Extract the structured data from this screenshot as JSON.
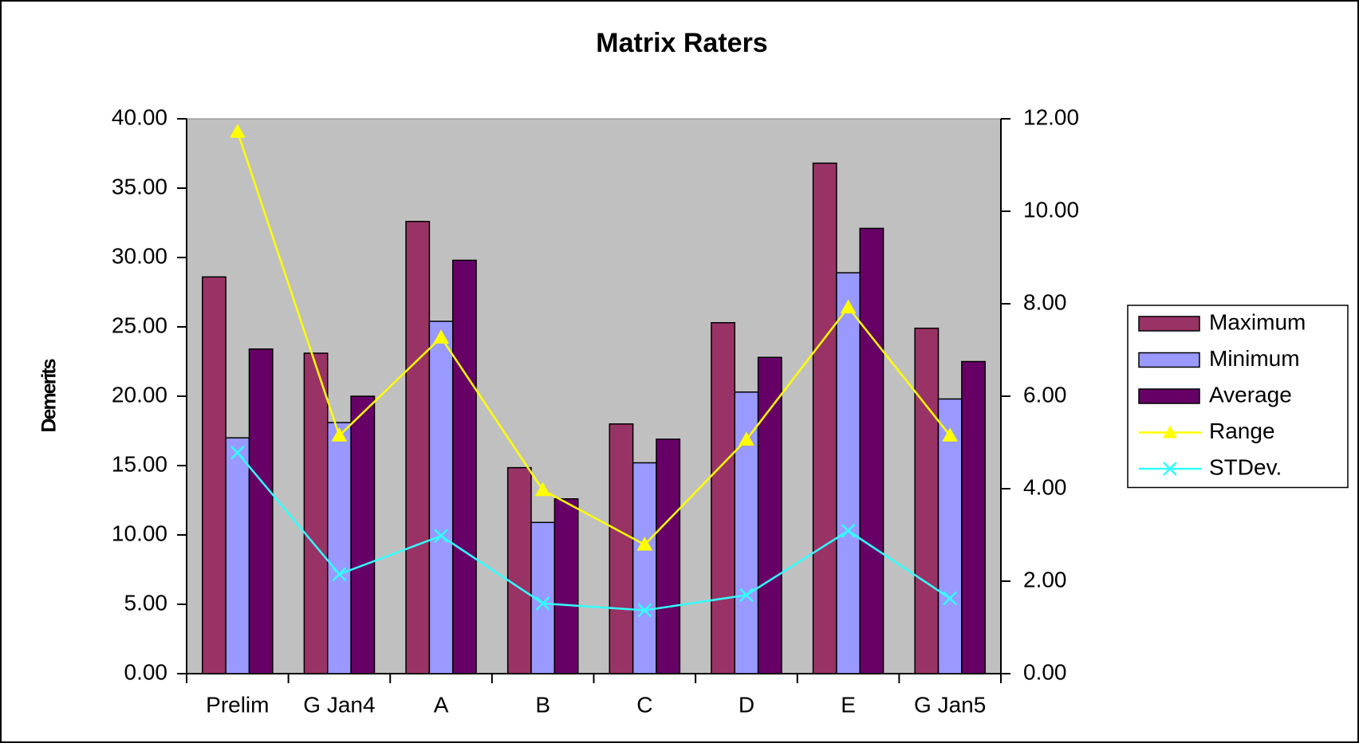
{
  "chart_data": {
    "type": "bar",
    "title": "Matrix Raters",
    "y_label": "Demerits",
    "categories": [
      "Prelim",
      "G Jan4",
      "A",
      "B",
      "C",
      "D",
      "E",
      "G Jan5"
    ],
    "series": [
      {
        "name": "Maximum",
        "color": "#993366",
        "type": "bar",
        "axis": "y",
        "values": [
          28.6,
          23.1,
          32.6,
          14.85,
          18.0,
          25.3,
          36.8,
          24.9
        ]
      },
      {
        "name": "Minimum",
        "color": "#9999ff",
        "type": "bar",
        "axis": "y",
        "values": [
          17.0,
          18.1,
          25.4,
          10.9,
          15.2,
          20.3,
          28.9,
          19.8
        ]
      },
      {
        "name": "Average",
        "color": "#660066",
        "type": "bar",
        "axis": "y",
        "values": [
          23.4,
          20.0,
          29.8,
          12.6,
          16.9,
          22.8,
          32.1,
          22.5
        ]
      },
      {
        "name": "Range",
        "color": "#ffff00",
        "type": "line",
        "marker": "triangle",
        "axis": "y2",
        "values": [
          11.72,
          5.15,
          7.27,
          3.97,
          2.79,
          5.06,
          7.92,
          5.15
        ]
      },
      {
        "name": "STDev.",
        "color": "#33ffff",
        "type": "line",
        "marker": "x",
        "axis": "y2",
        "values": [
          4.78,
          2.15,
          2.98,
          1.52,
          1.37,
          1.7,
          3.09,
          1.63
        ]
      }
    ],
    "ylim": [
      0,
      40
    ],
    "yticks": [
      {
        "value": 0,
        "label": "0.00"
      },
      {
        "value": 5,
        "label": "5.00"
      },
      {
        "value": 10,
        "label": "10.00"
      },
      {
        "value": 15,
        "label": "15.00"
      },
      {
        "value": 20,
        "label": "20.00"
      },
      {
        "value": 25,
        "label": "25.00"
      },
      {
        "value": 30,
        "label": "30.00"
      },
      {
        "value": 35,
        "label": "35.00"
      },
      {
        "value": 40,
        "label": "40.00"
      }
    ],
    "y2lim": [
      0,
      12
    ],
    "y2ticks": [
      {
        "value": 0,
        "label": "0.00"
      },
      {
        "value": 2,
        "label": "2.00"
      },
      {
        "value": 4,
        "label": "4.00"
      },
      {
        "value": 6,
        "label": "6.00"
      },
      {
        "value": 8,
        "label": "8.00"
      },
      {
        "value": 10,
        "label": "10.00"
      },
      {
        "value": 12,
        "label": "12.00"
      }
    ],
    "plot_background": "#c0c0c0",
    "legend": "right"
  }
}
